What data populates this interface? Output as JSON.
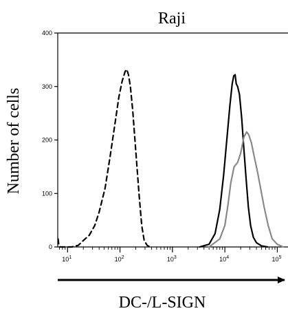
{
  "chart_data": {
    "type": "line",
    "title": "Raji",
    "xlabel": "DC-/L-SIGN",
    "ylabel": "Number of cells",
    "x_scale": "log",
    "xlim": [
      6.5,
      160000
    ],
    "ylim": [
      0,
      400
    ],
    "y_ticks": [
      0,
      100,
      200,
      300,
      400
    ],
    "x_ticks": [
      {
        "value": 10,
        "base": "10",
        "exp": "1"
      },
      {
        "value": 100,
        "base": "10",
        "exp": "2"
      },
      {
        "value": 1000,
        "base": "10",
        "exp": "3"
      },
      {
        "value": 10000,
        "base": "10",
        "exp": "4"
      },
      {
        "value": 100000,
        "base": "10",
        "exp": "5"
      }
    ],
    "grid": false,
    "legend": "none",
    "series": [
      {
        "style": "dashed",
        "color": "#000000",
        "points": [
          [
            6.6,
            15
          ],
          [
            6.8,
            5
          ],
          [
            7.2,
            0
          ],
          [
            12,
            0
          ],
          [
            16,
            3
          ],
          [
            20,
            12
          ],
          [
            26,
            22
          ],
          [
            33,
            40
          ],
          [
            40,
            65
          ],
          [
            52,
            110
          ],
          [
            65,
            170
          ],
          [
            80,
            230
          ],
          [
            95,
            280
          ],
          [
            110,
            310
          ],
          [
            125,
            328
          ],
          [
            135,
            332
          ],
          [
            145,
            322
          ],
          [
            158,
            300
          ],
          [
            175,
            255
          ],
          [
            200,
            180
          ],
          [
            230,
            100
          ],
          [
            260,
            40
          ],
          [
            290,
            12
          ],
          [
            330,
            3
          ],
          [
            370,
            0
          ]
        ]
      },
      {
        "style": "solid",
        "color": "#000000",
        "points": [
          [
            3300,
            0
          ],
          [
            5000,
            5
          ],
          [
            6500,
            25
          ],
          [
            8000,
            70
          ],
          [
            9500,
            135
          ],
          [
            11000,
            205
          ],
          [
            12500,
            265
          ],
          [
            13800,
            305
          ],
          [
            14800,
            320
          ],
          [
            15700,
            322
          ],
          [
            16500,
            305
          ],
          [
            17500,
            300
          ],
          [
            19000,
            285
          ],
          [
            21000,
            240
          ],
          [
            23000,
            185
          ],
          [
            25500,
            125
          ],
          [
            28000,
            75
          ],
          [
            31000,
            40
          ],
          [
            35000,
            18
          ],
          [
            40000,
            8
          ],
          [
            50000,
            2
          ],
          [
            65000,
            0
          ]
        ]
      },
      {
        "style": "solid",
        "color": "#888888",
        "points": [
          [
            5000,
            0
          ],
          [
            8000,
            15
          ],
          [
            10000,
            40
          ],
          [
            11500,
            80
          ],
          [
            13000,
            120
          ],
          [
            15000,
            150
          ],
          [
            17500,
            158
          ],
          [
            20000,
            175
          ],
          [
            23000,
            205
          ],
          [
            26000,
            215
          ],
          [
            28500,
            210
          ],
          [
            32000,
            195
          ],
          [
            37000,
            165
          ],
          [
            42000,
            140
          ],
          [
            48000,
            110
          ],
          [
            56000,
            75
          ],
          [
            67000,
            40
          ],
          [
            80000,
            15
          ],
          [
            100000,
            5
          ],
          [
            130000,
            0
          ]
        ]
      }
    ]
  }
}
